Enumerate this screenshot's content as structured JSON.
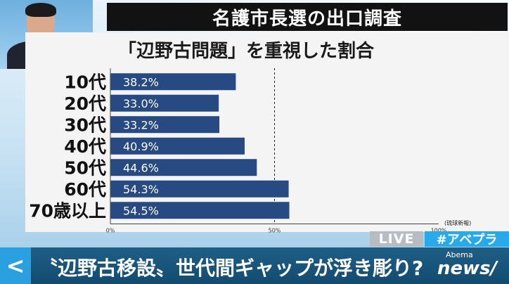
{
  "title": "名護市長選の出口調査",
  "subtitle": "「辺野古問題」を重視した割合",
  "source": "(琉球新報)",
  "chart_data": {
    "type": "bar",
    "orientation": "horizontal",
    "categories": [
      "10代",
      "20代",
      "30代",
      "40代",
      "50代",
      "60代",
      "70歳以上"
    ],
    "values": [
      38.2,
      33.0,
      33.2,
      40.9,
      44.6,
      54.3,
      54.5
    ],
    "value_labels": [
      "38.2%",
      "33.0%",
      "33.2%",
      "40.9%",
      "44.6%",
      "54.3%",
      "54.5%"
    ],
    "xlim": [
      0,
      100
    ],
    "x_ticks": [
      "0%",
      "50%",
      "100%"
    ],
    "reference_line": 50,
    "bar_color": "#274a82"
  },
  "overlay": {
    "live_label": "LIVE",
    "hashtag": "#アベプラ",
    "ticker_text": "〝辺野古移設〟世代間ギャップが浮き彫り?",
    "ticker_arrow": "<",
    "logo_small": "Abema",
    "logo_big": "news/"
  },
  "colors": {
    "title_bg": "#121212",
    "panel_bg": "#f4f4f4",
    "hashtag_bg": "#27a9ea",
    "live_bg": "#b7bcc2",
    "ticker_bg": "#1f5e86"
  }
}
